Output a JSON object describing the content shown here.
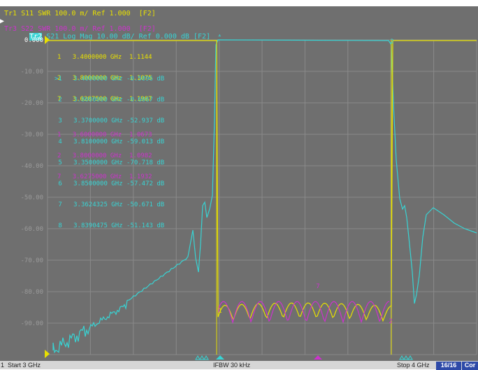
{
  "header": {
    "traces": [
      {
        "id": "Tr1",
        "text": "Tr1 S11 SWR 100.0 m/ Ref 1.000  [F2]",
        "color": "#e8e000",
        "active": false
      },
      {
        "id": "Tr2",
        "text": "Tr2",
        "rest": " S21 Log Mag 10.00 dB/ Ref 0.000 dB [F2]",
        "color": "#38d4d4",
        "active": true
      },
      {
        "id": "Tr3",
        "text": "Tr3 S22 SWR 100.0 m/ Ref 1.000  [F2]",
        "color": "#cc33cc",
        "active": false
      }
    ]
  },
  "axis": {
    "y_labels": [
      "0.000",
      "-10.00",
      "-20.00",
      "-30.00",
      "-40.00",
      "-50.00",
      "-60.00",
      "-70.00",
      "-80.00",
      "-90.00"
    ],
    "ylim": [
      -100,
      0
    ]
  },
  "markers": {
    "tr1": [
      {
        "num": "1",
        "freq": "3.4000000 GHz",
        "val": "1.1144"
      },
      {
        "num": "2",
        "freq": "3.8000000 GHz",
        "val": "1.1075"
      },
      {
        "num": "7",
        "freq": "3.6287500 GHz",
        "val": "1.1987"
      }
    ],
    "tr2": [
      {
        "num": ">1",
        "freq": "3.4000000 GHz",
        "val": "-0.5096 dB"
      },
      {
        "num": "2",
        "freq": "3.8000000 GHz",
        "val": "-0.6067 dB"
      },
      {
        "num": "3",
        "freq": "3.3700000 GHz",
        "val": "-52.937 dB"
      },
      {
        "num": "4",
        "freq": "3.8100000 GHz",
        "val": "-59.013 dB"
      },
      {
        "num": "5",
        "freq": "3.3500000 GHz",
        "val": "-70.718 dB"
      },
      {
        "num": "6",
        "freq": "3.8500000 GHz",
        "val": "-57.472 dB"
      },
      {
        "num": "7",
        "freq": "3.3624325 GHz",
        "val": "-50.671 dB"
      },
      {
        "num": "8",
        "freq": "3.8390475 GHz",
        "val": "-51.143 dB"
      }
    ],
    "tr3": [
      {
        "num": "1",
        "freq": "3.6000000 GHz",
        "val": "1.0673"
      },
      {
        "num": "2",
        "freq": "3.8000000 GHz",
        "val": "1.0982"
      },
      {
        "num": "7",
        "freq": "3.6275000 GHz",
        "val": "1.1932"
      }
    ]
  },
  "status": {
    "channel": "1",
    "start": "Start 3 GHz",
    "ifbw": "IFBW 30 kHz",
    "stop": "Stop 4 GHz",
    "points": "16/16",
    "cor": "Cor"
  },
  "colors": {
    "tr1": "#e8e000",
    "tr2": "#38d4d4",
    "tr3": "#cc33cc",
    "grid": "#8a8a8a",
    "background": "#6f6f6f"
  }
}
